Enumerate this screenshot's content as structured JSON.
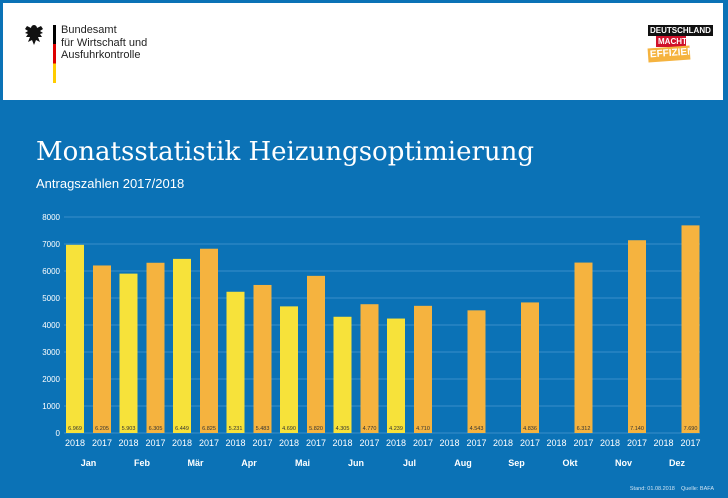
{
  "header": {
    "agency_lines": [
      "Bundesamt",
      "für Wirtschaft und",
      "Ausfuhrkontrolle"
    ],
    "campaign_logo": [
      "DEUTSCHLAND",
      "MACHT'S",
      "EFFIZIENT."
    ]
  },
  "title": "Monatsstatistik Heizungsoptimierung",
  "subtitle": "Antragszahlen 2017/2018",
  "footer": {
    "stand": "Stand: 01.08.2018",
    "quelle": "Quelle: BAFA"
  },
  "colors": {
    "background": "#0b72b6",
    "series_2018": "#f7e23a",
    "series_2017": "#f5b33f"
  },
  "chart_data": {
    "type": "bar",
    "categories": [
      "Jan",
      "Feb",
      "Mär",
      "Apr",
      "Mai",
      "Jun",
      "Jul",
      "Aug",
      "Sep",
      "Okt",
      "Nov",
      "Dez"
    ],
    "series": [
      {
        "name": "2018",
        "values": [
          6969,
          5903,
          6449,
          5231,
          4690,
          4305,
          4239,
          null,
          null,
          null,
          null,
          null
        ],
        "labels": [
          "6.969",
          "5.903",
          "6.449",
          "5.231",
          "4.690",
          "4.305",
          "4.239",
          "",
          "",
          "",
          "",
          ""
        ]
      },
      {
        "name": "2017",
        "values": [
          6205,
          6305,
          6825,
          5483,
          5820,
          4770,
          4710,
          4543,
          4836,
          6312,
          7140,
          7690
        ],
        "labels": [
          "6.205",
          "6.305",
          "6.825",
          "5.483",
          "5.820",
          "4.770",
          "4.710",
          "4.543",
          "4.836",
          "6.312",
          "7.140",
          "7.690"
        ]
      }
    ],
    "yticks": [
      "0",
      "1000",
      "2000",
      "3000",
      "4000",
      "5000",
      "6000",
      "7000",
      "8000"
    ],
    "ylim": [
      0,
      8000
    ],
    "grid": true
  }
}
